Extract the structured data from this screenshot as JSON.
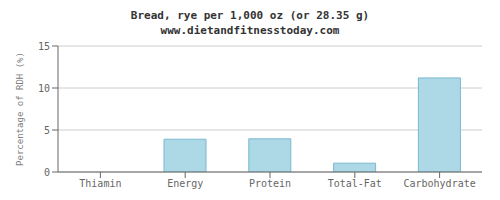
{
  "chart_data": {
    "type": "bar",
    "title": "Bread, rye per 1,000 oz (or 28.35 g)",
    "subtitle": "www.dietandfitnesstoday.com",
    "categories": [
      "Thiamin",
      "Energy",
      "Protein",
      "Total-Fat",
      "Carbohydrate"
    ],
    "values": [
      0.0,
      3.9,
      3.95,
      1.05,
      11.2
    ],
    "color": "#add8e6",
    "ylabel": "Percentage of RDH (%)",
    "ylim": [
      0,
      15
    ],
    "yticks": [
      0,
      5,
      10,
      15
    ],
    "grid": true
  }
}
